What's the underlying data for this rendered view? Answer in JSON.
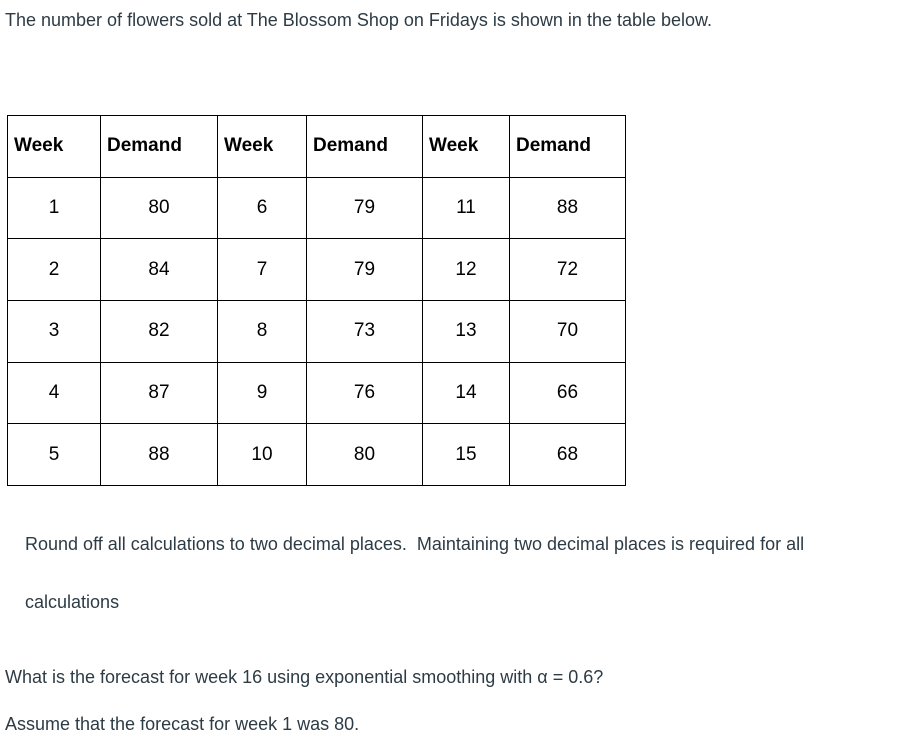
{
  "page": {
    "intro": "The number of flowers sold at The Blossom Shop on Fridays is shown in the table below.",
    "note_line1": "Round off all calculations to two decimal places.  Maintaining two decimal places is required for all",
    "note_line2": "calculations",
    "question": "What is the forecast for week 16 using exponential smoothing with α = 0.6?",
    "assumption": "Assume that the forecast for week 1 was 80."
  },
  "table": {
    "headers": [
      "Week",
      "Demand",
      "Week",
      "Demand",
      "Week",
      "Demand"
    ],
    "rows": [
      [
        "1",
        "80",
        "6",
        "79",
        "11",
        "88"
      ],
      [
        "2",
        "84",
        "7",
        "79",
        "12",
        "72"
      ],
      [
        "3",
        "82",
        "8",
        "73",
        "13",
        "70"
      ],
      [
        "4",
        "87",
        "9",
        "76",
        "14",
        "66"
      ],
      [
        "5",
        "88",
        "10",
        "80",
        "15",
        "68"
      ]
    ]
  },
  "colors": {
    "body_text": "#2d3b45",
    "table_text": "#000000",
    "table_border": "#000000",
    "background": "#ffffff"
  }
}
